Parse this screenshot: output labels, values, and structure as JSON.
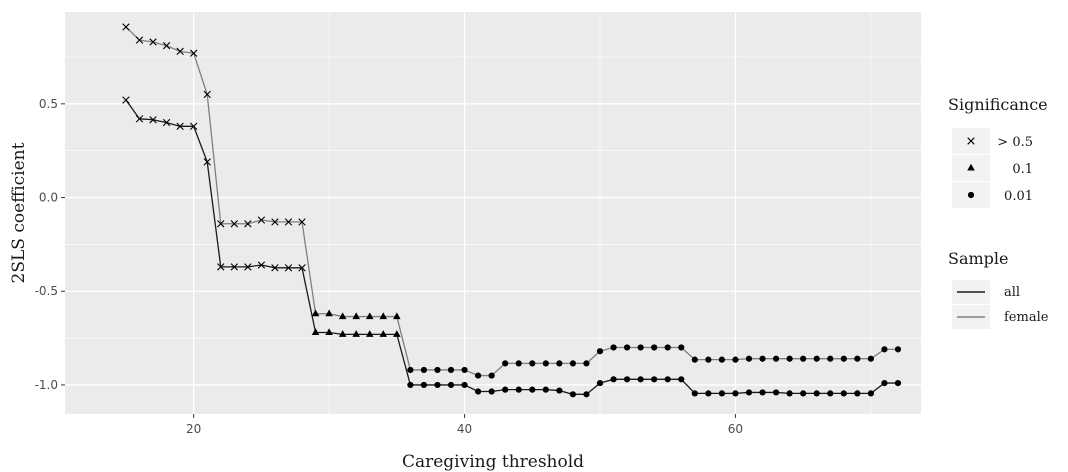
{
  "chart_data": {
    "type": "line",
    "title": "",
    "xlabel": "Caregiving threshold",
    "ylabel": "2SLS coefficient",
    "xlim": [
      10.5,
      73.7
    ],
    "ylim": [
      -1.155,
      0.99
    ],
    "x_ticks": [
      20,
      40,
      60
    ],
    "x_tick_labels": [
      "20",
      "40",
      "60"
    ],
    "y_ticks": [
      0.5,
      0.0,
      -0.5,
      -1.0
    ],
    "y_tick_labels": [
      "0.5",
      "0.0",
      "-0.5",
      "-1.0"
    ],
    "grid": true,
    "legend_position": "right",
    "series": [
      {
        "name": "all",
        "color": "#1a1a1a",
        "points": [
          [
            15,
            0.52,
            "x"
          ],
          [
            16,
            0.42,
            "x"
          ],
          [
            17,
            0.415,
            "x"
          ],
          [
            18,
            0.4,
            "x"
          ],
          [
            19,
            0.38,
            "x"
          ],
          [
            20,
            0.38,
            "x"
          ],
          [
            21,
            0.19,
            "x"
          ],
          [
            22,
            -0.37,
            "x"
          ],
          [
            23,
            -0.37,
            "x"
          ],
          [
            24,
            -0.37,
            "x"
          ],
          [
            25,
            -0.36,
            "x"
          ],
          [
            26,
            -0.375,
            "x"
          ],
          [
            27,
            -0.375,
            "x"
          ],
          [
            28,
            -0.375,
            "x"
          ],
          [
            29,
            -0.72,
            "t"
          ],
          [
            30,
            -0.72,
            "t"
          ],
          [
            31,
            -0.73,
            "t"
          ],
          [
            32,
            -0.73,
            "t"
          ],
          [
            33,
            -0.73,
            "t"
          ],
          [
            34,
            -0.73,
            "t"
          ],
          [
            35,
            -0.73,
            "t"
          ],
          [
            36,
            -1.0,
            "c"
          ],
          [
            37,
            -1.0,
            "c"
          ],
          [
            38,
            -1.0,
            "c"
          ],
          [
            39,
            -1.0,
            "c"
          ],
          [
            40,
            -1.0,
            "c"
          ],
          [
            41,
            -1.035,
            "c"
          ],
          [
            42,
            -1.035,
            "c"
          ],
          [
            43,
            -1.025,
            "c"
          ],
          [
            44,
            -1.025,
            "c"
          ],
          [
            45,
            -1.025,
            "c"
          ],
          [
            46,
            -1.025,
            "c"
          ],
          [
            47,
            -1.03,
            "c"
          ],
          [
            48,
            -1.05,
            "c"
          ],
          [
            49,
            -1.05,
            "c"
          ],
          [
            50,
            -0.99,
            "c"
          ],
          [
            51,
            -0.97,
            "c"
          ],
          [
            52,
            -0.97,
            "c"
          ],
          [
            53,
            -0.97,
            "c"
          ],
          [
            54,
            -0.97,
            "c"
          ],
          [
            55,
            -0.97,
            "c"
          ],
          [
            56,
            -0.97,
            "c"
          ],
          [
            57,
            -1.045,
            "c"
          ],
          [
            58,
            -1.045,
            "c"
          ],
          [
            59,
            -1.045,
            "c"
          ],
          [
            60,
            -1.045,
            "c"
          ],
          [
            61,
            -1.04,
            "c"
          ],
          [
            62,
            -1.04,
            "c"
          ],
          [
            63,
            -1.04,
            "c"
          ],
          [
            64,
            -1.045,
            "c"
          ],
          [
            65,
            -1.045,
            "c"
          ],
          [
            66,
            -1.045,
            "c"
          ],
          [
            67,
            -1.045,
            "c"
          ],
          [
            68,
            -1.045,
            "c"
          ],
          [
            69,
            -1.045,
            "c"
          ],
          [
            70,
            -1.045,
            "c"
          ],
          [
            71,
            -0.99,
            "c"
          ],
          [
            72,
            -0.99,
            "c"
          ]
        ]
      },
      {
        "name": "female",
        "color": "#7f7f7f",
        "points": [
          [
            15,
            0.91,
            "x"
          ],
          [
            16,
            0.84,
            "x"
          ],
          [
            17,
            0.83,
            "x"
          ],
          [
            18,
            0.81,
            "x"
          ],
          [
            19,
            0.78,
            "x"
          ],
          [
            20,
            0.77,
            "x"
          ],
          [
            21,
            0.55,
            "x"
          ],
          [
            22,
            -0.14,
            "x"
          ],
          [
            23,
            -0.14,
            "x"
          ],
          [
            24,
            -0.14,
            "x"
          ],
          [
            25,
            -0.12,
            "x"
          ],
          [
            26,
            -0.13,
            "x"
          ],
          [
            27,
            -0.13,
            "x"
          ],
          [
            28,
            -0.13,
            "x"
          ],
          [
            29,
            -0.62,
            "t"
          ],
          [
            30,
            -0.62,
            "t"
          ],
          [
            31,
            -0.635,
            "t"
          ],
          [
            32,
            -0.635,
            "t"
          ],
          [
            33,
            -0.635,
            "t"
          ],
          [
            34,
            -0.635,
            "t"
          ],
          [
            35,
            -0.635,
            "t"
          ],
          [
            36,
            -0.92,
            "c"
          ],
          [
            37,
            -0.92,
            "c"
          ],
          [
            38,
            -0.92,
            "c"
          ],
          [
            39,
            -0.92,
            "c"
          ],
          [
            40,
            -0.92,
            "c"
          ],
          [
            41,
            -0.95,
            "c"
          ],
          [
            42,
            -0.95,
            "c"
          ],
          [
            43,
            -0.885,
            "c"
          ],
          [
            44,
            -0.885,
            "c"
          ],
          [
            45,
            -0.885,
            "c"
          ],
          [
            46,
            -0.885,
            "c"
          ],
          [
            47,
            -0.885,
            "c"
          ],
          [
            48,
            -0.885,
            "c"
          ],
          [
            49,
            -0.885,
            "c"
          ],
          [
            50,
            -0.82,
            "c"
          ],
          [
            51,
            -0.8,
            "c"
          ],
          [
            52,
            -0.8,
            "c"
          ],
          [
            53,
            -0.8,
            "c"
          ],
          [
            54,
            -0.8,
            "c"
          ],
          [
            55,
            -0.8,
            "c"
          ],
          [
            56,
            -0.8,
            "c"
          ],
          [
            57,
            -0.865,
            "c"
          ],
          [
            58,
            -0.865,
            "c"
          ],
          [
            59,
            -0.865,
            "c"
          ],
          [
            60,
            -0.865,
            "c"
          ],
          [
            61,
            -0.86,
            "c"
          ],
          [
            62,
            -0.86,
            "c"
          ],
          [
            63,
            -0.86,
            "c"
          ],
          [
            64,
            -0.86,
            "c"
          ],
          [
            65,
            -0.86,
            "c"
          ],
          [
            66,
            -0.86,
            "c"
          ],
          [
            67,
            -0.86,
            "c"
          ],
          [
            68,
            -0.86,
            "c"
          ],
          [
            69,
            -0.86,
            "c"
          ],
          [
            70,
            -0.86,
            "c"
          ],
          [
            71,
            -0.81,
            "c"
          ],
          [
            72,
            -0.81,
            "c"
          ]
        ]
      }
    ],
    "legend": {
      "significance": {
        "title": "Significance",
        "items": [
          {
            "shape": "x",
            "label": "> 0.5"
          },
          {
            "shape": "t",
            "label": "0.1"
          },
          {
            "shape": "c",
            "label": "0.01"
          }
        ]
      },
      "sample": {
        "title": "Sample",
        "items": [
          {
            "label": "all",
            "color": "#1a1a1a"
          },
          {
            "label": "female",
            "color": "#7f7f7f"
          }
        ]
      }
    },
    "colors": {
      "panel_background": "#ebebeb",
      "grid_major": "#ffffff",
      "legend_key_background": "#f2f2f2"
    }
  }
}
